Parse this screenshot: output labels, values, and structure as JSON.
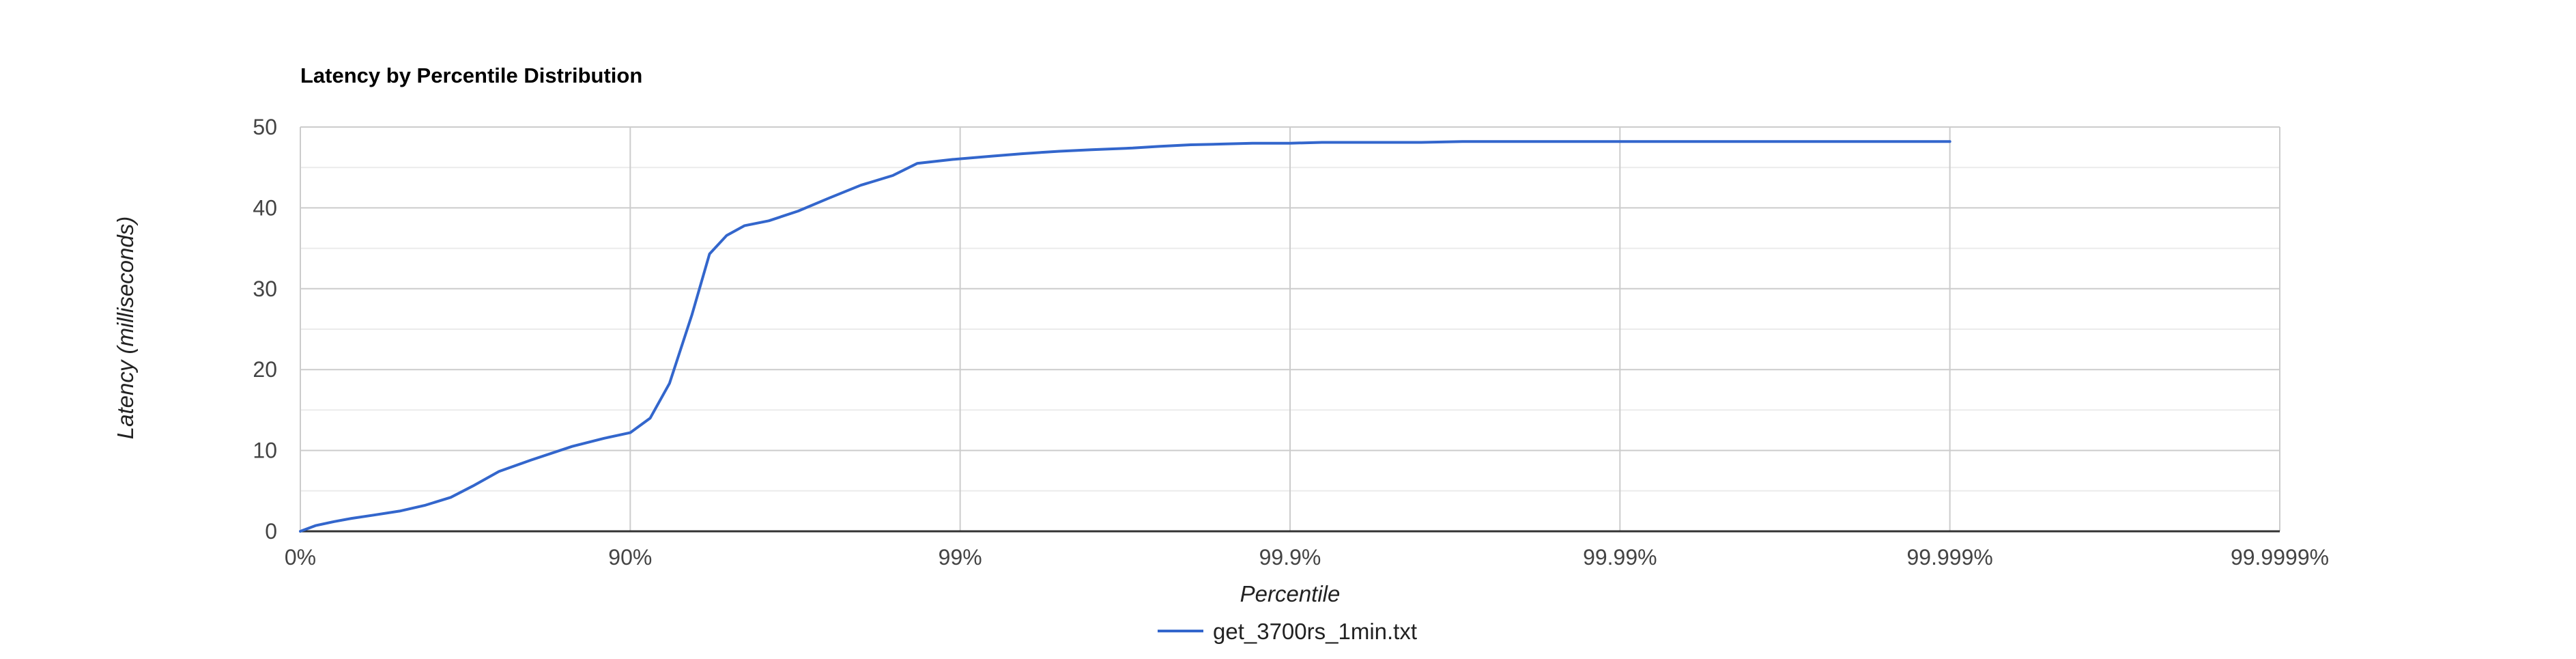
{
  "chart_data": {
    "type": "line",
    "title": "Latency by Percentile Distribution",
    "xlabel": "Percentile",
    "ylabel": "Latency (milliseconds)",
    "x_scale": "log-percentile",
    "x_ticks": [
      {
        "value": 0,
        "label": "0%"
      },
      {
        "value": 90,
        "label": "90%"
      },
      {
        "value": 99,
        "label": "99%"
      },
      {
        "value": 99.9,
        "label": "99.9%"
      },
      {
        "value": 99.99,
        "label": "99.99%"
      },
      {
        "value": 99.999,
        "label": "99.999%"
      },
      {
        "value": 99.9999,
        "label": "99.9999%"
      }
    ],
    "y_ticks": [
      0,
      10,
      20,
      30,
      40,
      50
    ],
    "ylim": [
      0,
      50
    ],
    "grid": true,
    "legend_position": "bottom",
    "series": [
      {
        "name": "get_3700rs_1min.txt",
        "color": "#3366cc",
        "x": [
          0,
          10,
          21,
          30,
          40,
          50,
          58,
          65,
          70,
          75,
          80,
          85,
          88,
          90,
          91.3,
          92.4,
          93.5,
          94.25,
          94.9,
          95.5,
          96.2,
          96.9,
          97.5,
          98.0,
          98.4,
          98.65,
          98.95,
          99.2,
          99.35,
          99.45,
          99.5,
          99.6,
          99.7,
          99.75,
          99.8,
          99.84,
          99.87,
          99.89,
          99.9,
          99.92,
          99.94,
          99.95,
          99.96,
          99.97,
          99.98,
          99.985,
          99.99,
          99.993,
          99.995,
          99.997,
          99.998,
          99.999
        ],
        "y": [
          0,
          0.7,
          1.2,
          1.6,
          2.0,
          2.5,
          3.2,
          4.2,
          5.6,
          7.4,
          8.8,
          10.5,
          11.5,
          12.2,
          14.0,
          18.3,
          26.8,
          34.3,
          36.6,
          37.8,
          38.4,
          39.6,
          41.2,
          42.8,
          44.0,
          45.5,
          46.0,
          46.4,
          46.7,
          46.9,
          47.0,
          47.2,
          47.4,
          47.6,
          47.8,
          47.9,
          48.0,
          48.0,
          48.0,
          48.1,
          48.1,
          48.1,
          48.1,
          48.2,
          48.2,
          48.2,
          48.2,
          48.2,
          48.2,
          48.2,
          48.2,
          48.2
        ]
      }
    ],
    "colors": {
      "axis": "#333333",
      "major_grid": "#cccccc",
      "minor_grid": "#ebebeb",
      "tick_text": "#444444",
      "title": "#000000",
      "label": "#222222"
    }
  }
}
